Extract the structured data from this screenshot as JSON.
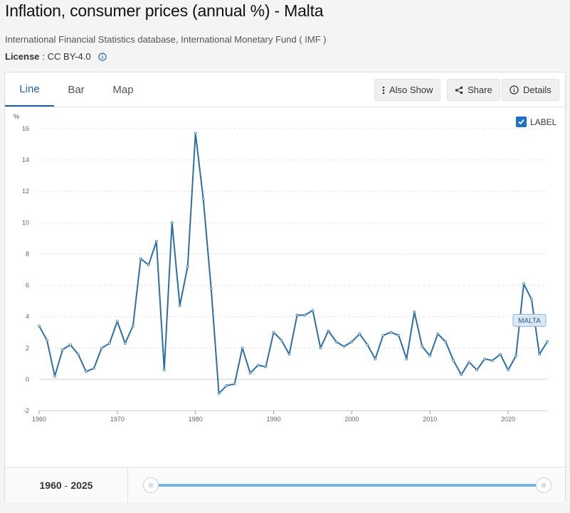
{
  "header": {
    "title": "Inflation, consumer prices (annual %) - Malta",
    "source": "International Financial Statistics database, International Monetary Fund ( IMF )",
    "license_label": "License",
    "license_value": ": CC BY-4.0"
  },
  "tabs": [
    {
      "label": "Line",
      "active": true
    },
    {
      "label": "Bar",
      "active": false
    },
    {
      "label": "Map",
      "active": false
    }
  ],
  "toolbar": {
    "also_show": "Also Show",
    "share": "Share",
    "details": "Details"
  },
  "label_toggle": {
    "label": "LABEL",
    "checked": true
  },
  "range": {
    "start": "1960",
    "end": "2025"
  },
  "colors": {
    "line": "#2c6ea5",
    "accent": "#1f6fc2",
    "slider": "#76b8ea"
  },
  "chart_data": {
    "type": "line",
    "ylabel": "%",
    "ylim": [
      -2,
      16
    ],
    "yticks": [
      -2,
      0,
      2,
      4,
      6,
      8,
      10,
      12,
      14,
      16
    ],
    "xlim": [
      1960,
      2025
    ],
    "xticks": [
      1960,
      1970,
      1980,
      1990,
      2000,
      2010,
      2020
    ],
    "grid": true,
    "series": [
      {
        "name": "MALTA",
        "x": [
          1960,
          1961,
          1962,
          1963,
          1964,
          1965,
          1966,
          1967,
          1968,
          1969,
          1970,
          1971,
          1972,
          1973,
          1974,
          1975,
          1976,
          1977,
          1978,
          1979,
          1980,
          1981,
          1982,
          1983,
          1984,
          1985,
          1986,
          1987,
          1988,
          1989,
          1990,
          1991,
          1992,
          1993,
          1994,
          1995,
          1996,
          1997,
          1998,
          1999,
          2000,
          2001,
          2002,
          2003,
          2004,
          2005,
          2006,
          2007,
          2008,
          2009,
          2010,
          2011,
          2012,
          2013,
          2014,
          2015,
          2016,
          2017,
          2018,
          2019,
          2020,
          2021,
          2022,
          2023,
          2024,
          2025
        ],
        "values": [
          3.4,
          2.5,
          0.2,
          1.9,
          2.2,
          1.6,
          0.5,
          0.7,
          2.0,
          2.3,
          3.7,
          2.3,
          3.4,
          7.7,
          7.3,
          8.8,
          0.6,
          10.0,
          4.7,
          7.2,
          15.7,
          11.5,
          5.8,
          -0.9,
          -0.4,
          -0.3,
          2.0,
          0.4,
          0.9,
          0.8,
          3.0,
          2.5,
          1.6,
          4.1,
          4.1,
          4.4,
          2.0,
          3.1,
          2.4,
          2.1,
          2.4,
          2.9,
          2.2,
          1.3,
          2.8,
          3.0,
          2.8,
          1.3,
          4.3,
          2.1,
          1.5,
          2.9,
          2.4,
          1.2,
          0.3,
          1.1,
          0.6,
          1.3,
          1.2,
          1.6,
          0.6,
          1.5,
          6.1,
          5.1,
          1.6,
          2.4
        ]
      }
    ]
  }
}
